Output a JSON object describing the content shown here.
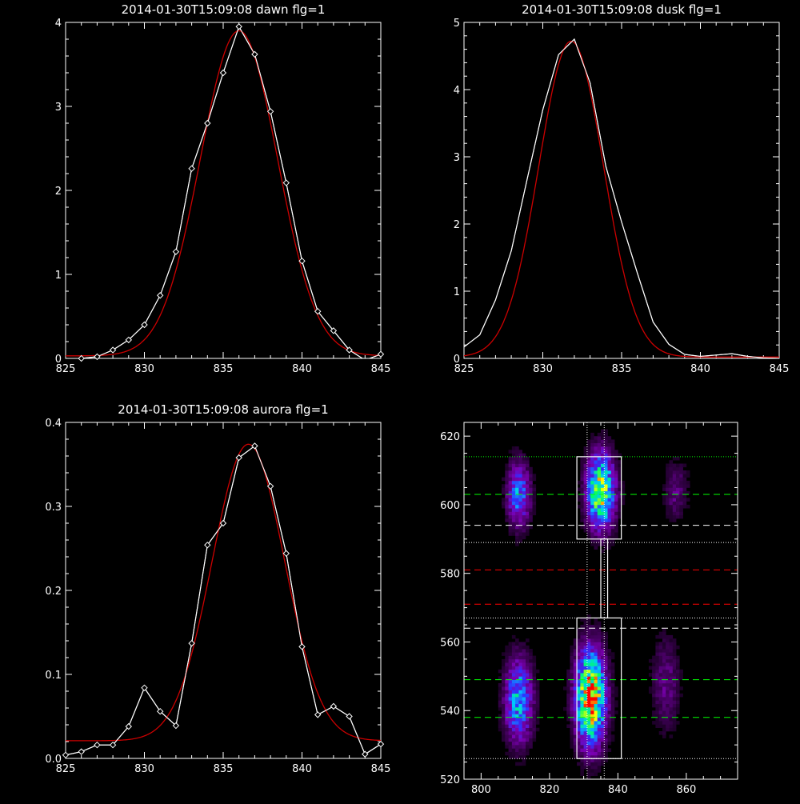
{
  "chart_data": [
    {
      "type": "line",
      "title": "2014-01-30T15:09:08 dawn flg=1",
      "xlim": [
        825,
        845
      ],
      "ylim": [
        0,
        4
      ],
      "x_ticks": [
        825,
        830,
        835,
        840,
        845
      ],
      "y_ticks": [
        0,
        1,
        2,
        3,
        4
      ],
      "series": [
        {
          "role": "measured",
          "color": "#ffffff",
          "marker": "diamond",
          "x": [
            826,
            827,
            828,
            829,
            830,
            831,
            832,
            833,
            834,
            835,
            836,
            837,
            838,
            839,
            840,
            841,
            842,
            843,
            844,
            845
          ],
          "y": [
            0.0,
            0.02,
            0.1,
            0.22,
            0.4,
            0.75,
            1.27,
            2.26,
            2.8,
            3.4,
            3.95,
            3.62,
            2.94,
            2.09,
            1.16,
            0.56,
            0.33,
            0.1,
            -0.02,
            0.05
          ]
        },
        {
          "role": "fit",
          "color": "#cc0000",
          "gaussian": {
            "amplitude": 3.87,
            "center": 836.0,
            "sigma": 2.45,
            "offset": 0.03
          }
        }
      ]
    },
    {
      "type": "line",
      "title": "2014-01-30T15:09:08 dusk flg=1",
      "xlim": [
        825,
        845
      ],
      "ylim": [
        0,
        5
      ],
      "x_ticks": [
        825,
        830,
        835,
        840,
        845
      ],
      "y_ticks": [
        0,
        1,
        2,
        3,
        4,
        5
      ],
      "series": [
        {
          "role": "measured",
          "color": "#ffffff",
          "marker": "diamond",
          "x": [
            825,
            826,
            827,
            828,
            829,
            830,
            831,
            832,
            833,
            834,
            835,
            836,
            837,
            838,
            839,
            840,
            841,
            842,
            843,
            844,
            845
          ],
          "y": [
            0.17,
            0.35,
            0.87,
            1.6,
            2.66,
            3.7,
            4.52,
            4.75,
            4.1,
            2.86,
            2.03,
            1.27,
            0.54,
            0.21,
            0.06,
            0.03,
            0.05,
            0.07,
            0.03,
            0.01,
            0.0
          ],
          "markers": false
        },
        {
          "role": "fit",
          "color": "#cc0000",
          "gaussian": {
            "amplitude": 4.7,
            "center": 831.8,
            "sigma": 2.05,
            "offset": 0.02
          }
        }
      ]
    },
    {
      "type": "line",
      "title": "2014-01-30T15:09:08 aurora flg=1",
      "xlim": [
        825,
        845
      ],
      "ylim": [
        0,
        0.4
      ],
      "x_ticks": [
        825,
        830,
        835,
        840,
        845
      ],
      "y_ticks": [
        0.0,
        0.1,
        0.2,
        0.3,
        0.4
      ],
      "series": [
        {
          "role": "measured",
          "color": "#ffffff",
          "marker": "diamond",
          "x": [
            825,
            826,
            827,
            828,
            829,
            830,
            831,
            832,
            833,
            834,
            835,
            836,
            837,
            838,
            839,
            840,
            841,
            842,
            843,
            844,
            845
          ],
          "y": [
            0.004,
            0.008,
            0.016,
            0.016,
            0.038,
            0.084,
            0.056,
            0.039,
            0.137,
            0.254,
            0.28,
            0.358,
            0.372,
            0.324,
            0.244,
            0.133,
            0.052,
            0.062,
            0.05,
            0.005,
            0.017
          ]
        },
        {
          "role": "fit",
          "color": "#cc0000",
          "gaussian": {
            "amplitude": 0.353,
            "center": 836.6,
            "sigma": 2.3,
            "offset": 0.021
          }
        }
      ]
    },
    {
      "type": "heatmap",
      "xlim": [
        795,
        875
      ],
      "ylim": [
        520,
        624
      ],
      "x_ticks": [
        800,
        820,
        840,
        860
      ],
      "y_ticks": [
        520,
        540,
        560,
        580,
        600,
        620
      ],
      "colormap": [
        "#000000",
        "#3a0050",
        "#7a00b0",
        "#3030ff",
        "#00c8ff",
        "#00ff60",
        "#ffff00",
        "#ff0000"
      ],
      "blobs": [
        {
          "x": 811,
          "y": 543,
          "sx": 3.0,
          "sy": 9.0,
          "peak": 0.55
        },
        {
          "x": 832,
          "y": 544,
          "sx": 3.2,
          "sy": 10.0,
          "peak": 0.95
        },
        {
          "x": 854,
          "y": 548,
          "sx": 3.0,
          "sy": 10.0,
          "peak": 0.22
        },
        {
          "x": 811,
          "y": 603,
          "sx": 2.5,
          "sy": 7.0,
          "peak": 0.48
        },
        {
          "x": 835,
          "y": 604,
          "sx": 3.0,
          "sy": 8.0,
          "peak": 0.8
        },
        {
          "x": 857,
          "y": 604,
          "sx": 2.5,
          "sy": 6.0,
          "peak": 0.22
        }
      ],
      "dotted_vlines": [
        {
          "x": 831,
          "color": "#ffffff"
        },
        {
          "x": 836,
          "color": "#ffffff"
        }
      ],
      "hlines": [
        {
          "y": 614,
          "color": "#00ff00",
          "style": "dotted"
        },
        {
          "y": 603,
          "color": "#00ff00",
          "style": "dashed"
        },
        {
          "y": 594,
          "color": "#ffffff",
          "style": "dashed"
        },
        {
          "y": 589,
          "color": "#ffffff",
          "style": "dotted"
        },
        {
          "y": 581,
          "color": "#ff0000",
          "style": "dashed"
        },
        {
          "y": 571,
          "color": "#ff0000",
          "style": "dashed"
        },
        {
          "y": 567,
          "color": "#ffffff",
          "style": "dotted"
        },
        {
          "y": 564,
          "color": "#ffffff",
          "style": "dashed"
        },
        {
          "y": 549,
          "color": "#00ff00",
          "style": "dashed"
        },
        {
          "y": 538,
          "color": "#00ff00",
          "style": "dashed"
        },
        {
          "y": 526,
          "color": "#ffffff",
          "style": "dotted"
        }
      ],
      "boxes": [
        {
          "x0": 828,
          "x1": 841,
          "y0": 590,
          "y1": 614
        },
        {
          "x0": 828,
          "x1": 841,
          "y0": 526,
          "y1": 567
        },
        {
          "x0": 835,
          "x1": 837,
          "y0": 567,
          "y1": 590
        }
      ]
    }
  ]
}
